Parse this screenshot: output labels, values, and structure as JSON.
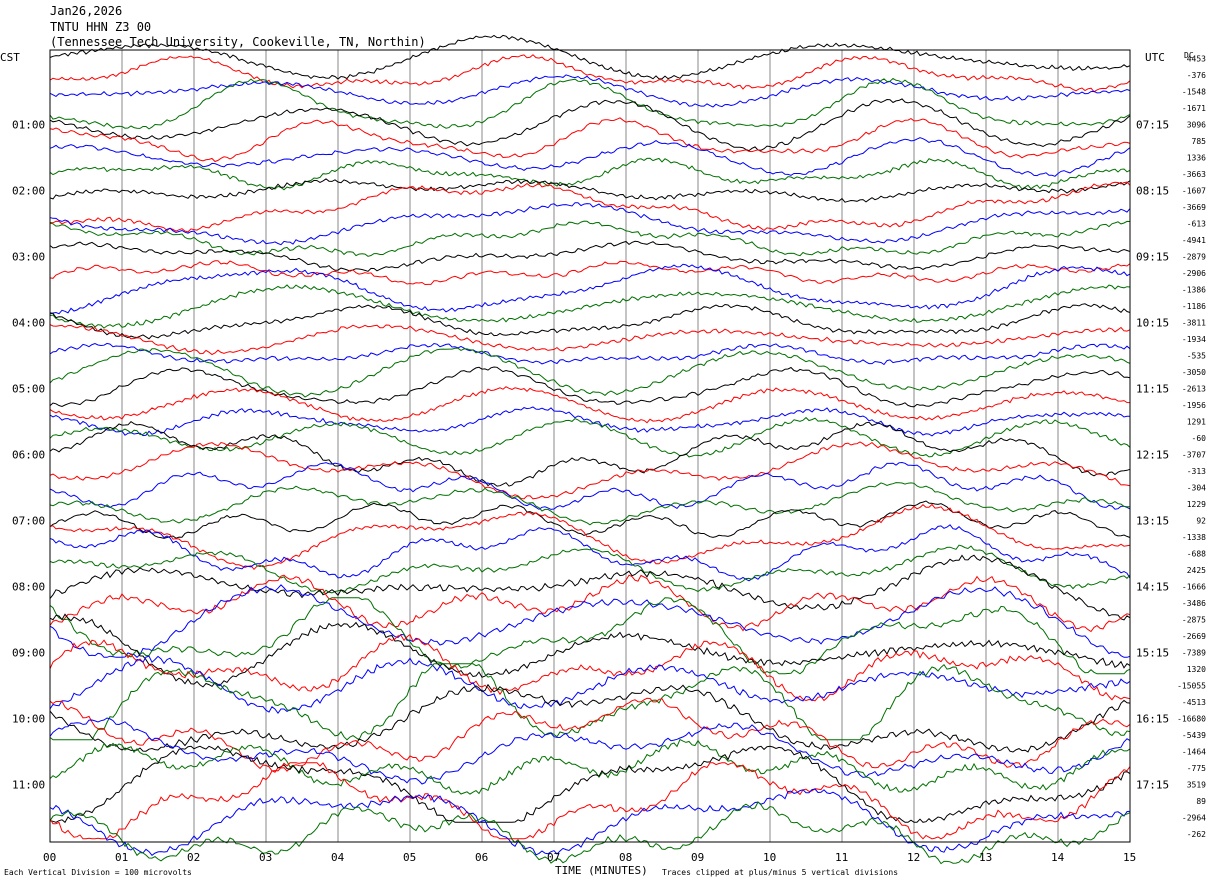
{
  "header": {
    "date": "Jan26,2026",
    "station": "TNTU HHN Z3 00",
    "location": "(Tennessee Tech University, Cookeville, TN, Northin)"
  },
  "axes": {
    "left_title": "CST",
    "right_title": "UTC",
    "dc_title": "DC",
    "xlabel": "TIME (MINUTES)",
    "scale_note": "Each Vertical Division = 100 microvolts",
    "clip_note": "Traces clipped at plus/minus 5 vertical divisions"
  },
  "chart_data": {
    "type": "line",
    "title": "TNTU HHN Z3 00",
    "xlabel": "TIME (MINUTES)",
    "xlim": [
      0,
      15
    ],
    "x_ticks": [
      "00",
      "01",
      "02",
      "03",
      "04",
      "05",
      "06",
      "07",
      "08",
      "09",
      "10",
      "11",
      "12",
      "13",
      "14",
      "15"
    ],
    "left_ticks": [
      "01:00",
      "02:00",
      "03:00",
      "04:00",
      "05:00",
      "06:00",
      "07:00",
      "08:00",
      "09:00",
      "10:00",
      "11:00"
    ],
    "right_ticks": [
      "07:15",
      "08:15",
      "09:15",
      "10:15",
      "11:15",
      "12:15",
      "13:15",
      "14:15",
      "15:15",
      "16:15",
      "17:15"
    ],
    "trace_colors": [
      "#000000",
      "#ff0000",
      "#0000ff",
      "#007000"
    ],
    "dc_offsets": [
      "4453",
      "-376",
      "-1548",
      "-1671",
      "3096",
      "785",
      "1336",
      "-3663",
      "-1607",
      "-3669",
      "-613",
      "-4941",
      "-2879",
      "-2906",
      "-1386",
      "-1186",
      "-3811",
      "-1934",
      "-535",
      "-3050",
      "-2613",
      "-1956",
      "1291",
      "-60",
      "-3707",
      "-313",
      "-304",
      "1229",
      "92",
      "-1338",
      "-688",
      "2425",
      "-1666",
      "-3486",
      "-2875",
      "-2669",
      "-7389",
      "1320",
      "-15055",
      "-4513",
      "-16680",
      "-5439",
      "-1464",
      "-775",
      "3519",
      "89",
      "-2964",
      "-262"
    ],
    "grid": true
  }
}
